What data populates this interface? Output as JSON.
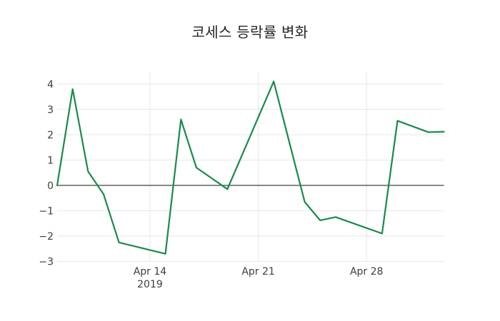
{
  "styles": {
    "background": "#ffffff",
    "line_color": "#188a4c",
    "grid_color": "#e7e7e7",
    "zeroline_color": "#404040",
    "tick_text_color": "#3d3d3d",
    "title_text_color": "#262626"
  },
  "chart_data": {
    "type": "line",
    "title": "코세스 등락률 변화",
    "xlabel": "",
    "ylabel": "",
    "grid": true,
    "legend": false,
    "zeroline": true,
    "x_axis": {
      "range": [
        "2019-04-08",
        "2019-05-03"
      ],
      "ticks": [
        {
          "date": "2019-04-14",
          "lines": [
            "Apr 14",
            "2019"
          ]
        },
        {
          "date": "2019-04-21",
          "lines": [
            "Apr 21"
          ]
        },
        {
          "date": "2019-04-28",
          "lines": [
            "Apr 28"
          ]
        }
      ]
    },
    "y_axis": {
      "range": [
        -3.0,
        4.5
      ],
      "ticks": [
        -3,
        -2,
        -1,
        0,
        1,
        2,
        3,
        4
      ]
    },
    "series": [
      {
        "name": "코세스 등락률",
        "color": "#188a4c",
        "points": [
          {
            "date": "2019-04-08",
            "value": 0.0
          },
          {
            "date": "2019-04-09",
            "value": 3.8
          },
          {
            "date": "2019-04-10",
            "value": 0.55
          },
          {
            "date": "2019-04-11",
            "value": -0.35
          },
          {
            "date": "2019-04-12",
            "value": -2.25
          },
          {
            "date": "2019-04-15",
            "value": -2.7
          },
          {
            "date": "2019-04-16",
            "value": 2.6
          },
          {
            "date": "2019-04-17",
            "value": 0.7
          },
          {
            "date": "2019-04-18",
            "value": 0.28
          },
          {
            "date": "2019-04-19",
            "value": -0.15
          },
          {
            "date": "2019-04-22",
            "value": 4.1
          },
          {
            "date": "2019-04-23",
            "value": 1.72
          },
          {
            "date": "2019-04-24",
            "value": -0.65
          },
          {
            "date": "2019-04-25",
            "value": -1.38
          },
          {
            "date": "2019-04-26",
            "value": -1.25
          },
          {
            "date": "2019-04-29",
            "value": -1.9
          },
          {
            "date": "2019-04-30",
            "value": 2.55
          },
          {
            "date": "2019-05-02",
            "value": 2.1
          },
          {
            "date": "2019-05-03",
            "value": 2.12
          }
        ]
      }
    ]
  }
}
